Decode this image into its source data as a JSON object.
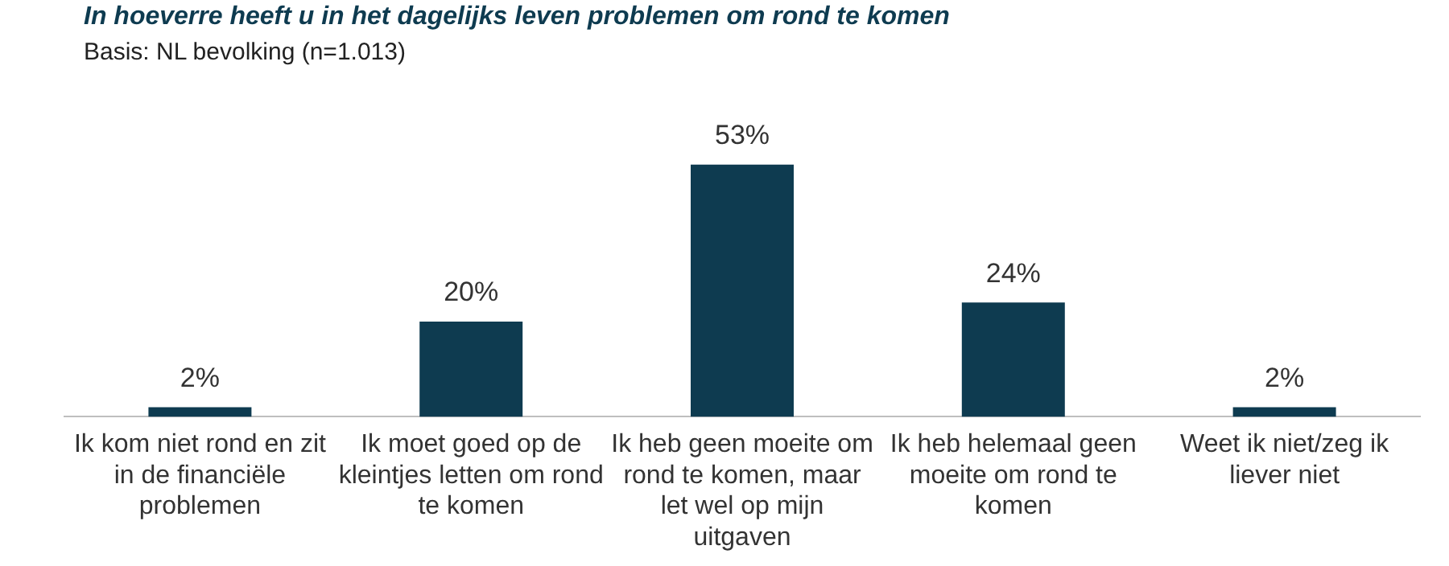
{
  "chart_data": {
    "type": "bar",
    "title": "In hoeverre heeft u in het dagelijks leven problemen om rond te komen",
    "subtitle": "Basis: NL bevolking (n=1.013)",
    "categories": [
      "Ik kom niet rond en zit in de financiële problemen",
      "Ik moet goed op de kleintjes letten om rond te komen",
      "Ik heb geen moeite om rond te komen, maar let wel op mijn uitgaven",
      "Ik heb helemaal geen moeite om rond te komen",
      "Weet ik niet/zeg ik liever niet"
    ],
    "values": [
      2,
      20,
      53,
      24,
      2
    ],
    "value_labels": [
      "2%",
      "20%",
      "53%",
      "24%",
      "2%"
    ],
    "color": "#0e3b50"
  }
}
